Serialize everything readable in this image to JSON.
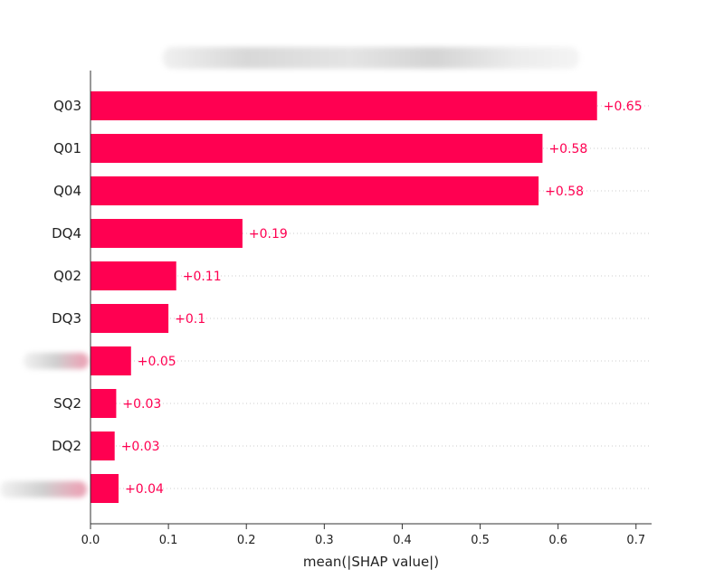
{
  "chart_data": {
    "type": "bar",
    "orientation": "horizontal",
    "title": "",
    "xlabel": "mean(|SHAP value|)",
    "ylabel": "",
    "xlim": [
      0,
      0.72
    ],
    "xticks": [
      0.0,
      0.1,
      0.2,
      0.3,
      0.4,
      0.5,
      0.6,
      0.7
    ],
    "xtick_labels": [
      "0.0",
      "0.1",
      "0.2",
      "0.3",
      "0.4",
      "0.5",
      "0.6",
      "0.7"
    ],
    "grid": "dotted row guides",
    "categories": [
      "Q03",
      "Q01",
      "Q04",
      "DQ4",
      "Q02",
      "DQ3",
      "",
      "SQ2",
      "DQ2",
      ""
    ],
    "values": [
      0.65,
      0.58,
      0.575,
      0.195,
      0.11,
      0.1,
      0.052,
      0.033,
      0.031,
      0.036
    ],
    "value_labels": [
      "+0.65",
      "+0.58",
      "+0.58",
      "+0.19",
      "+0.11",
      "+0.1",
      "+0.05",
      "+0.03",
      "+0.03",
      "+0.04"
    ],
    "bar_color": "#ff0051",
    "label_color": "#ff0051"
  }
}
